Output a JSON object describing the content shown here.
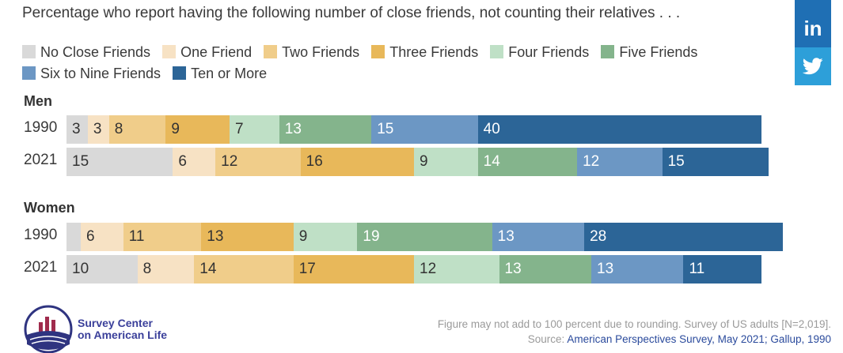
{
  "chart_data": {
    "type": "bar",
    "orientation": "horizontal-stacked",
    "subtitle": "Percentage who report having the following number of close friends, not counting their relatives . . .",
    "categories": [
      "No Close Friends",
      "One Friend",
      "Two Friends",
      "Three Friends",
      "Four Friends",
      "Five Friends",
      "Six to Nine Friends",
      "Ten or More"
    ],
    "colors": [
      "#d9d9d9",
      "#f7e2c4",
      "#f0cd8a",
      "#e8b85a",
      "#bfe0c6",
      "#84b48c",
      "#6c97c4",
      "#2c6597"
    ],
    "legend_placement": "top",
    "groups": [
      {
        "title": "Men",
        "rows": [
          {
            "label": "1990",
            "values": [
              3,
              3,
              8,
              9,
              7,
              13,
              15,
              40
            ]
          },
          {
            "label": "2021",
            "values": [
              15,
              6,
              12,
              16,
              9,
              14,
              12,
              15
            ]
          }
        ]
      },
      {
        "title": "Women",
        "rows": [
          {
            "label": "1990",
            "values": [
              null,
              6,
              11,
              13,
              9,
              19,
              13,
              28
            ]
          },
          {
            "label": "2021",
            "values": [
              10,
              8,
              14,
              17,
              12,
              13,
              13,
              11
            ]
          }
        ]
      }
    ]
  },
  "legend": {
    "items": [
      "No Close Friends",
      "One Friend",
      "Two Friends",
      "Three Friends",
      "Four Friends",
      "Five Friends",
      "Six to Nine Friends",
      "Ten or More"
    ]
  },
  "footer": {
    "note": "Figure may not add to 100 percent due to rounding. Survey of US adults [N=2,019].",
    "source_prefix": "Source:",
    "source_link": "American Perspectives Survey, May 2021; Gallup, 1990",
    "logo_line1": "Survey Center",
    "logo_line2": "on American Life"
  },
  "social": {
    "linkedin_icon": "linkedin-icon",
    "twitter_icon": "twitter-icon",
    "linkedin_glyph": "in"
  }
}
